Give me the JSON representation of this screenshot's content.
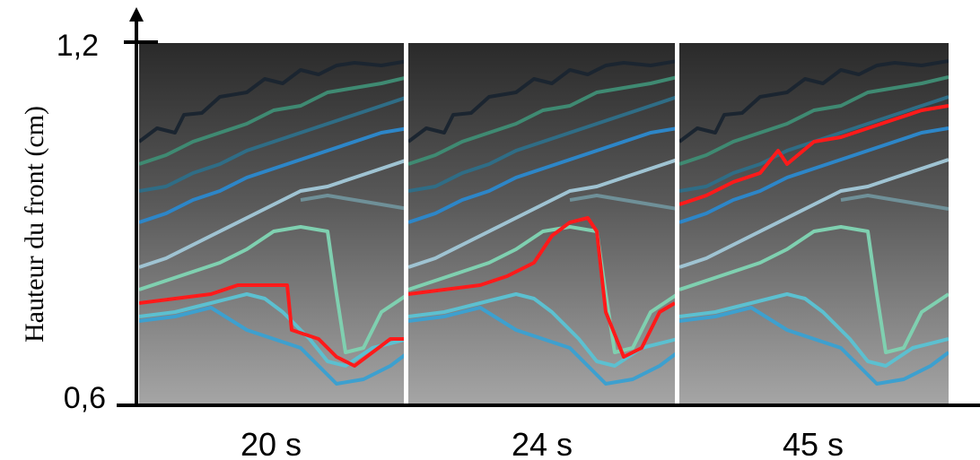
{
  "axis": {
    "label": "Hauteur du front (cm)",
    "ticks": [
      "1,2",
      "0,6"
    ]
  },
  "panels": [
    {
      "label": "20 s"
    },
    {
      "label": "24 s"
    },
    {
      "label": "45 s"
    }
  ]
}
